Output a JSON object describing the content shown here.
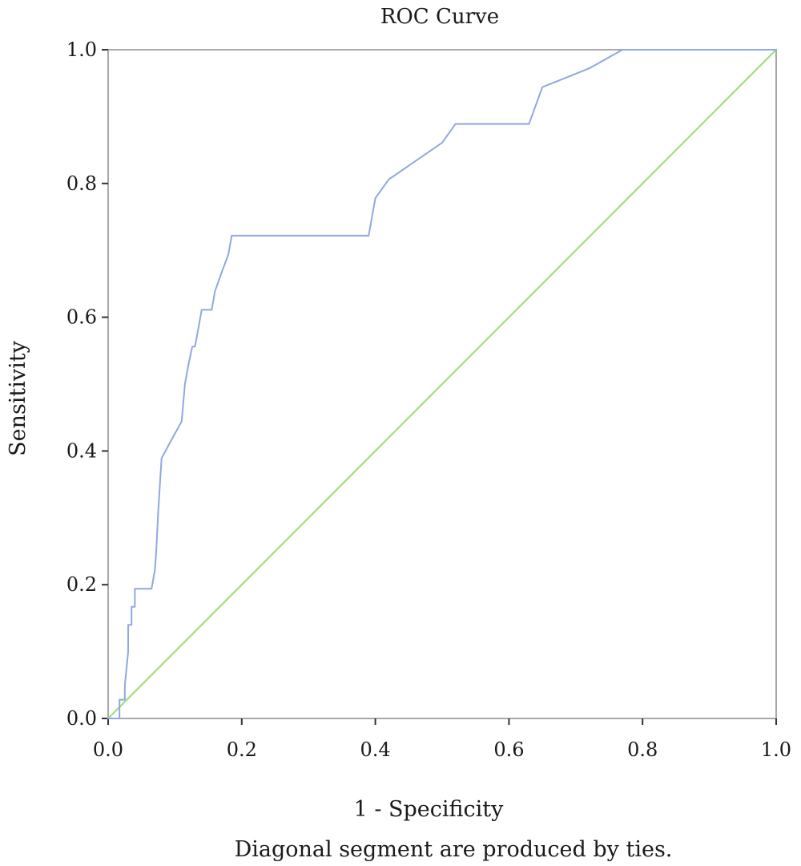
{
  "chart_data": {
    "type": "line",
    "title": "ROC Curve",
    "xlabel": "1 - Specificity",
    "ylabel": "Sensitivity",
    "footnote": "Diagonal segment are produced by ties.",
    "xlim": [
      0.0,
      1.0
    ],
    "ylim": [
      0.0,
      1.0
    ],
    "x_ticks": [
      "0.0",
      "0.2",
      "0.4",
      "0.6",
      "0.8",
      "1.0"
    ],
    "y_ticks": [
      "0.0",
      "0.2",
      "0.4",
      "0.6",
      "0.8",
      "1.0"
    ],
    "grid": false,
    "legend": "none",
    "series": [
      {
        "role": "roc_curve",
        "color": "#8fa8e0",
        "x": [
          0.0,
          0.017,
          0.017,
          0.025,
          0.025,
          0.03,
          0.03,
          0.035,
          0.035,
          0.04,
          0.04,
          0.065,
          0.07,
          0.072,
          0.075,
          0.08,
          0.095,
          0.11,
          0.115,
          0.12,
          0.126,
          0.13,
          0.135,
          0.14,
          0.14,
          0.155,
          0.16,
          0.17,
          0.18,
          0.185,
          0.2,
          0.35,
          0.39,
          0.395,
          0.4,
          0.42,
          0.5,
          0.52,
          0.63,
          0.65,
          0.72,
          0.77,
          1.0
        ],
        "y": [
          0.0,
          0.0,
          0.028,
          0.028,
          0.05,
          0.1,
          0.14,
          0.14,
          0.167,
          0.167,
          0.194,
          0.194,
          0.222,
          0.25,
          0.31,
          0.389,
          0.417,
          0.444,
          0.5,
          0.528,
          0.556,
          0.556,
          0.583,
          0.611,
          0.611,
          0.611,
          0.639,
          0.667,
          0.694,
          0.722,
          0.722,
          0.722,
          0.722,
          0.75,
          0.778,
          0.806,
          0.861,
          0.889,
          0.889,
          0.944,
          0.972,
          1.0,
          1.0
        ]
      },
      {
        "role": "reference_line",
        "color": "#9fe07a",
        "x": [
          0.0,
          1.0
        ],
        "y": [
          0.0,
          1.0
        ]
      }
    ]
  }
}
